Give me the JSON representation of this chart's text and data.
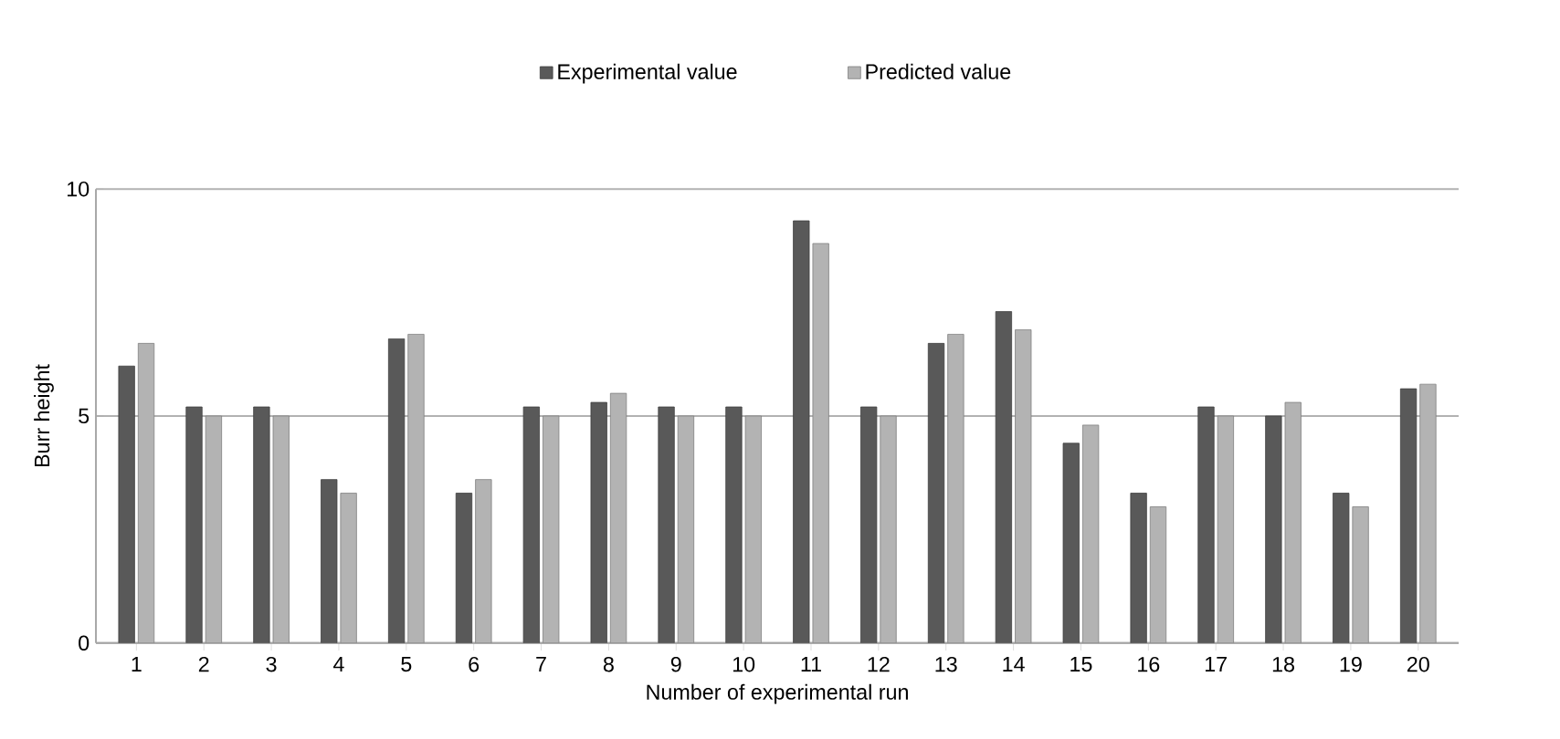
{
  "chart_data": {
    "type": "bar",
    "xlabel": "Number of experimental run",
    "ylabel": "Burr  height",
    "categories": [
      "1",
      "2",
      "3",
      "4",
      "5",
      "6",
      "7",
      "8",
      "9",
      "10",
      "11",
      "12",
      "13",
      "14",
      "15",
      "16",
      "17",
      "18",
      "19",
      "20"
    ],
    "series": [
      {
        "name": "Experimental value",
        "color": "#595959",
        "values": [
          6.1,
          5.2,
          5.2,
          3.6,
          6.7,
          3.3,
          5.2,
          5.3,
          5.2,
          5.2,
          9.3,
          5.2,
          6.6,
          7.3,
          4.4,
          3.3,
          5.2,
          5.0,
          3.3,
          5.6
        ]
      },
      {
        "name": "Predicted value",
        "color": "#b3b3b3",
        "values": [
          6.6,
          5.0,
          5.0,
          3.3,
          6.8,
          3.6,
          5.0,
          5.5,
          5.0,
          5.0,
          8.8,
          5.0,
          6.8,
          6.9,
          4.8,
          3.0,
          5.0,
          5.3,
          3.0,
          5.7
        ]
      }
    ],
    "ylim": [
      0,
      10
    ],
    "yticks": [
      0,
      5,
      10
    ],
    "grid": "y",
    "legend": "top"
  }
}
